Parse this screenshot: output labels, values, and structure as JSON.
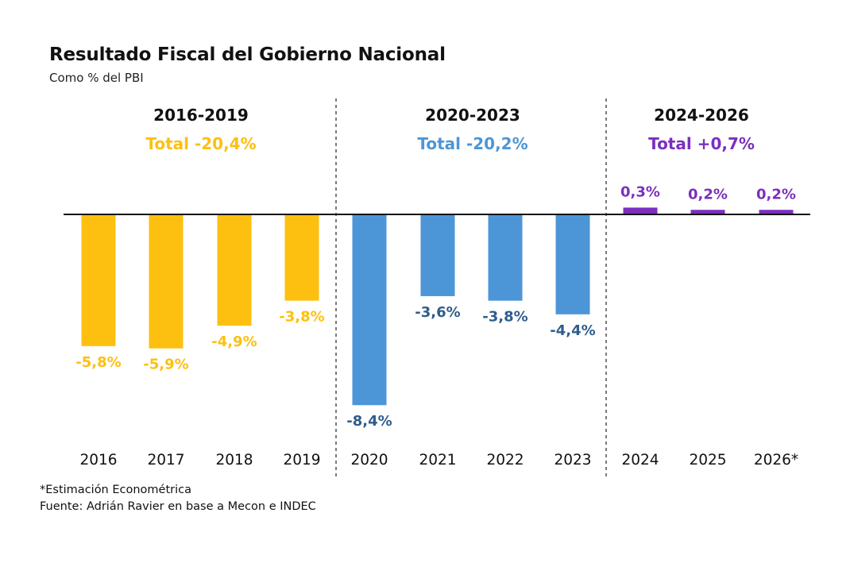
{
  "header": {
    "title": "Resultado Fiscal del Gobierno Nacional",
    "subtitle": "Como % del PBI"
  },
  "footer": {
    "note": "*Estimación Econométrica",
    "source": "Fuente: Adrián Ravier en base a Mecon e INDEC"
  },
  "chart_data": {
    "type": "bar",
    "title": "Resultado Fiscal del Gobierno Nacional",
    "subtitle": "Como % del PBI",
    "xlabel": "",
    "ylabel": "",
    "grid": false,
    "legend": "none",
    "ylim": [
      -8.4,
      0.3
    ],
    "categories": [
      "2016",
      "2017",
      "2018",
      "2019",
      "2020",
      "2021",
      "2022",
      "2023",
      "2024",
      "2025",
      "2026*"
    ],
    "values": [
      -5.8,
      -5.9,
      -4.9,
      -3.8,
      -8.4,
      -3.6,
      -3.8,
      -4.4,
      0.3,
      0.2,
      0.2
    ],
    "data_labels": [
      "-5,8%",
      "-5,9%",
      "-4,9%",
      "-3,8%",
      "-8,4%",
      "-3,6%",
      "-3,8%",
      "-4,4%",
      "0,3%",
      "0,2%",
      "0,2%"
    ],
    "groups": [
      {
        "period": "2016-2019",
        "total_label": "Total -20,4%",
        "color": "#FDC010",
        "label_color": "#FDC010",
        "indices": [
          0,
          1,
          2,
          3
        ]
      },
      {
        "period": "2020-2023",
        "total_label": "Total -20,2%",
        "color": "#4C96D7",
        "label_color": "#2F5D8C",
        "total_color": "#4C96D7",
        "indices": [
          4,
          5,
          6,
          7
        ]
      },
      {
        "period": "2024-2026",
        "total_label": "Total +0,7%",
        "color": "#7B2FBF",
        "label_color": "#7B2FBF",
        "indices": [
          8,
          9,
          10
        ]
      }
    ],
    "colors": {
      "axis": "#111111",
      "separator": "#333333",
      "period_title": "#111111",
      "tick_label": "#111111"
    }
  }
}
